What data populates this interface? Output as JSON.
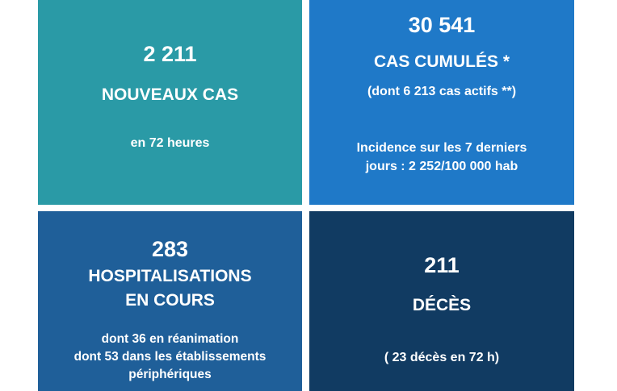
{
  "colors": {
    "new_cases": "#2a9aa6",
    "cumulative": "#1f79c8",
    "hospital": "#1f5f99",
    "deaths": "#113b62"
  },
  "new_cases": {
    "value": "2 211",
    "label": "NOUVEAUX CAS",
    "period": "en 72 heures"
  },
  "cumulative": {
    "value": "30 541",
    "label": "CAS CUMULÉS *",
    "active": "(dont 6 213 cas actifs **)",
    "incidence_line1": "Incidence sur les 7 derniers",
    "incidence_line2": "jours : 2 252/100 000 hab"
  },
  "hospital": {
    "value": "283",
    "label_line1": "HOSPITALISATIONS",
    "label_line2": "EN COURS",
    "detail_line1": "dont 36 en réanimation",
    "detail_line2": "dont 53 dans les établissements",
    "detail_line3": "périphériques"
  },
  "deaths": {
    "value": "211",
    "label": "DÉCÈS",
    "recent": "( 23 décès en 72 h)"
  }
}
